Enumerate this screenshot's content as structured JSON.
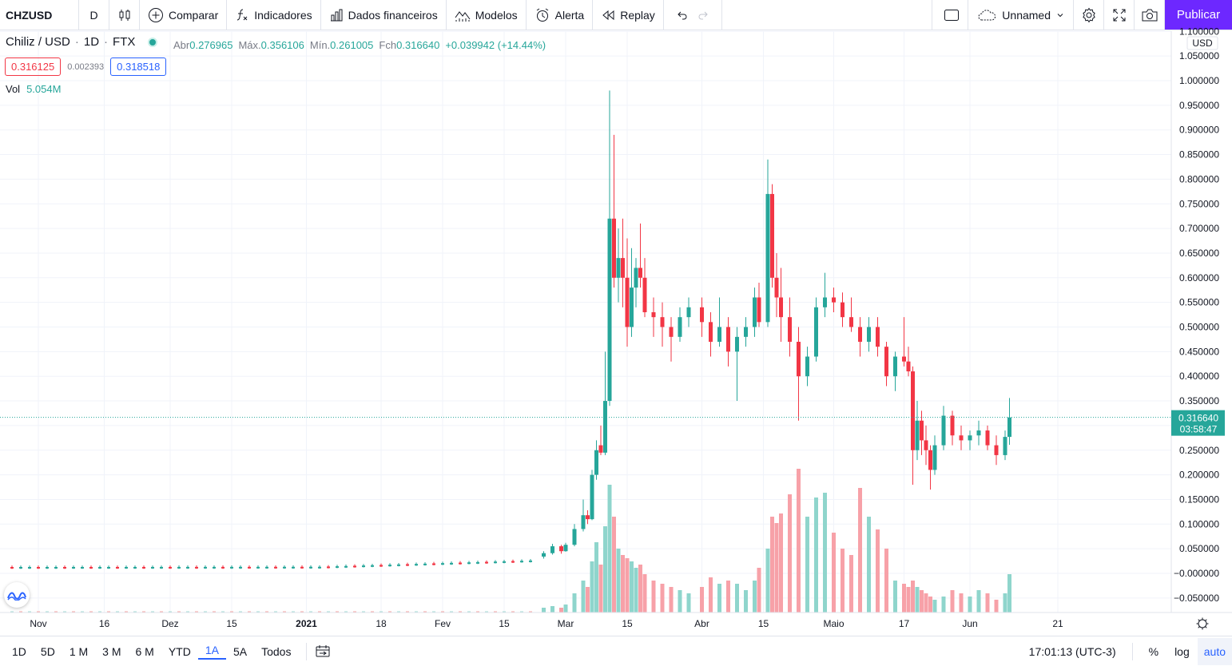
{
  "toolbar": {
    "symbol": "CHZUSD",
    "interval": "D",
    "compare_label": "Comparar",
    "indicators_label": "Indicadores",
    "financials_label": "Dados financeiros",
    "templates_label": "Modelos",
    "alert_label": "Alerta",
    "replay_label": "Replay",
    "layout_name": "Unnamed",
    "publish_label": "Publicar",
    "icons": [
      "candles-icon",
      "plus-circle-icon",
      "fx-icon",
      "bar-chart-icon",
      "templates-icon",
      "alarm-icon",
      "replay-icon",
      "undo-icon",
      "redo-icon",
      "layout-icon",
      "cloud-icon",
      "chevron-down-icon",
      "gear-icon",
      "fullscreen-icon",
      "camera-icon"
    ]
  },
  "legend": {
    "title": "Chiliz / USD",
    "interval": "1D",
    "exchange": "FTX",
    "open_label": "Abr",
    "open": "0.276965",
    "high_label": "Máx.",
    "high": "0.356106",
    "low_label": "Mín.",
    "low": "0.261005",
    "close_label": "Fch",
    "close": "0.316640",
    "change": "+0.039942 (+14.44%)",
    "bid": "0.316125",
    "spread": "0.002393",
    "ask": "0.318518",
    "vol_label": "Vol",
    "vol": "5.054M"
  },
  "bottombar": {
    "ranges": [
      "1D",
      "5D",
      "1 M",
      "3 M",
      "6 M",
      "YTD",
      "1A",
      "5A",
      "Todos"
    ],
    "active_range": "1A",
    "clock": "17:01:13 (UTC-3)",
    "percent_label": "%",
    "log_label": "log",
    "auto_label": "auto"
  },
  "colors": {
    "up": "#26a69a",
    "down": "#f23645",
    "accent": "#6d28ff",
    "active": "#2962ff"
  },
  "chart_data": {
    "type": "candlestick",
    "currency": "USD",
    "ylim": [
      -0.07,
      1.1
    ],
    "y_ticks": [
      "1.100000",
      "1.050000",
      "1.000000",
      "0.950000",
      "0.900000",
      "0.850000",
      "0.800000",
      "0.750000",
      "0.700000",
      "0.650000",
      "0.600000",
      "0.550000",
      "0.500000",
      "0.450000",
      "0.400000",
      "0.350000",
      "0.300000",
      "0.250000",
      "0.200000",
      "0.150000",
      "0.100000",
      "0.050000",
      "−0.000000",
      "−0.050000"
    ],
    "x_ticks": [
      {
        "label": "Nov",
        "date": "2020-11-01"
      },
      {
        "label": "16",
        "date": "2020-11-16"
      },
      {
        "label": "Dez",
        "date": "2020-12-01"
      },
      {
        "label": "15",
        "date": "2020-12-15"
      },
      {
        "label": "2021",
        "date": "2021-01-01",
        "bold": true
      },
      {
        "label": "18",
        "date": "2021-01-18"
      },
      {
        "label": "Fev",
        "date": "2021-02-01"
      },
      {
        "label": "15",
        "date": "2021-02-15"
      },
      {
        "label": "Mar",
        "date": "2021-03-01"
      },
      {
        "label": "15",
        "date": "2021-03-15"
      },
      {
        "label": "Abr",
        "date": "2021-04-01"
      },
      {
        "label": "15",
        "date": "2021-04-15"
      },
      {
        "label": "Maio",
        "date": "2021-05-01"
      },
      {
        "label": "17",
        "date": "2021-05-17"
      },
      {
        "label": "Jun",
        "date": "2021-06-01"
      },
      {
        "label": "21",
        "date": "2021-06-21"
      }
    ],
    "last_price": "0.316640",
    "countdown": "03:58:47",
    "last_value": 0.31664,
    "candles": [
      {
        "d": "2021-02-24",
        "o": 0.034,
        "h": 0.045,
        "l": 0.03,
        "c": 0.041,
        "v": 3
      },
      {
        "d": "2021-02-26",
        "o": 0.041,
        "h": 0.06,
        "l": 0.038,
        "c": 0.055,
        "v": 4
      },
      {
        "d": "2021-02-28",
        "o": 0.055,
        "h": 0.058,
        "l": 0.04,
        "c": 0.045,
        "v": 3
      },
      {
        "d": "2021-03-01",
        "o": 0.045,
        "h": 0.062,
        "l": 0.044,
        "c": 0.058,
        "v": 5
      },
      {
        "d": "2021-03-03",
        "o": 0.058,
        "h": 0.1,
        "l": 0.055,
        "c": 0.09,
        "v": 12
      },
      {
        "d": "2021-03-05",
        "o": 0.09,
        "h": 0.15,
        "l": 0.085,
        "c": 0.118,
        "v": 20
      },
      {
        "d": "2021-03-06",
        "o": 0.118,
        "h": 0.128,
        "l": 0.1,
        "c": 0.11,
        "v": 16
      },
      {
        "d": "2021-03-07",
        "o": 0.11,
        "h": 0.21,
        "l": 0.108,
        "c": 0.2,
        "v": 32
      },
      {
        "d": "2021-03-08",
        "o": 0.2,
        "h": 0.27,
        "l": 0.19,
        "c": 0.25,
        "v": 44
      },
      {
        "d": "2021-03-09",
        "o": 0.26,
        "h": 0.3,
        "l": 0.24,
        "c": 0.245,
        "v": 30
      },
      {
        "d": "2021-03-10",
        "o": 0.245,
        "h": 0.45,
        "l": 0.24,
        "c": 0.35,
        "v": 54
      },
      {
        "d": "2021-03-11",
        "o": 0.35,
        "h": 0.98,
        "l": 0.34,
        "c": 0.72,
        "v": 80
      },
      {
        "d": "2021-03-12",
        "o": 0.72,
        "h": 0.89,
        "l": 0.58,
        "c": 0.6,
        "v": 60
      },
      {
        "d": "2021-03-13",
        "o": 0.6,
        "h": 0.7,
        "l": 0.55,
        "c": 0.64,
        "v": 40
      },
      {
        "d": "2021-03-14",
        "o": 0.64,
        "h": 0.72,
        "l": 0.54,
        "c": 0.6,
        "v": 36
      },
      {
        "d": "2021-03-15",
        "o": 0.6,
        "h": 0.68,
        "l": 0.46,
        "c": 0.5,
        "v": 34
      },
      {
        "d": "2021-03-16",
        "o": 0.5,
        "h": 0.66,
        "l": 0.48,
        "c": 0.58,
        "v": 32
      },
      {
        "d": "2021-03-17",
        "o": 0.58,
        "h": 0.64,
        "l": 0.54,
        "c": 0.62,
        "v": 28
      },
      {
        "d": "2021-03-18",
        "o": 0.62,
        "h": 0.71,
        "l": 0.58,
        "c": 0.6,
        "v": 30
      },
      {
        "d": "2021-03-19",
        "o": 0.6,
        "h": 0.64,
        "l": 0.52,
        "c": 0.53,
        "v": 24
      },
      {
        "d": "2021-03-21",
        "o": 0.53,
        "h": 0.56,
        "l": 0.48,
        "c": 0.52,
        "v": 20
      },
      {
        "d": "2021-03-23",
        "o": 0.52,
        "h": 0.55,
        "l": 0.46,
        "c": 0.5,
        "v": 18
      },
      {
        "d": "2021-03-25",
        "o": 0.5,
        "h": 0.52,
        "l": 0.43,
        "c": 0.48,
        "v": 16
      },
      {
        "d": "2021-03-27",
        "o": 0.48,
        "h": 0.54,
        "l": 0.47,
        "c": 0.52,
        "v": 14
      },
      {
        "d": "2021-03-29",
        "o": 0.52,
        "h": 0.56,
        "l": 0.5,
        "c": 0.54,
        "v": 12
      },
      {
        "d": "2021-04-01",
        "o": 0.54,
        "h": 0.56,
        "l": 0.48,
        "c": 0.51,
        "v": 16
      },
      {
        "d": "2021-04-03",
        "o": 0.51,
        "h": 0.53,
        "l": 0.44,
        "c": 0.47,
        "v": 22
      },
      {
        "d": "2021-04-05",
        "o": 0.47,
        "h": 0.56,
        "l": 0.46,
        "c": 0.5,
        "v": 18
      },
      {
        "d": "2021-04-07",
        "o": 0.5,
        "h": 0.52,
        "l": 0.42,
        "c": 0.45,
        "v": 20
      },
      {
        "d": "2021-04-09",
        "o": 0.45,
        "h": 0.5,
        "l": 0.35,
        "c": 0.48,
        "v": 18
      },
      {
        "d": "2021-04-11",
        "o": 0.48,
        "h": 0.52,
        "l": 0.46,
        "c": 0.5,
        "v": 14
      },
      {
        "d": "2021-04-13",
        "o": 0.5,
        "h": 0.58,
        "l": 0.48,
        "c": 0.56,
        "v": 20
      },
      {
        "d": "2021-04-14",
        "o": 0.56,
        "h": 0.59,
        "l": 0.5,
        "c": 0.51,
        "v": 28
      },
      {
        "d": "2021-04-16",
        "o": 0.51,
        "h": 0.84,
        "l": 0.5,
        "c": 0.77,
        "v": 40
      },
      {
        "d": "2021-04-17",
        "o": 0.77,
        "h": 0.79,
        "l": 0.58,
        "c": 0.6,
        "v": 60
      },
      {
        "d": "2021-04-18",
        "o": 0.6,
        "h": 0.65,
        "l": 0.52,
        "c": 0.56,
        "v": 56
      },
      {
        "d": "2021-04-19",
        "o": 0.56,
        "h": 0.62,
        "l": 0.47,
        "c": 0.52,
        "v": 62
      },
      {
        "d": "2021-04-21",
        "o": 0.52,
        "h": 0.56,
        "l": 0.44,
        "c": 0.47,
        "v": 74
      },
      {
        "d": "2021-04-23",
        "o": 0.47,
        "h": 0.5,
        "l": 0.31,
        "c": 0.4,
        "v": 90
      },
      {
        "d": "2021-04-25",
        "o": 0.4,
        "h": 0.46,
        "l": 0.38,
        "c": 0.44,
        "v": 60
      },
      {
        "d": "2021-04-27",
        "o": 0.44,
        "h": 0.56,
        "l": 0.43,
        "c": 0.54,
        "v": 72
      },
      {
        "d": "2021-04-29",
        "o": 0.54,
        "h": 0.61,
        "l": 0.52,
        "c": 0.56,
        "v": 75
      },
      {
        "d": "2021-05-01",
        "o": 0.56,
        "h": 0.58,
        "l": 0.53,
        "c": 0.55,
        "v": 50
      },
      {
        "d": "2021-05-03",
        "o": 0.55,
        "h": 0.57,
        "l": 0.5,
        "c": 0.52,
        "v": 40
      },
      {
        "d": "2021-05-05",
        "o": 0.52,
        "h": 0.56,
        "l": 0.49,
        "c": 0.5,
        "v": 36
      },
      {
        "d": "2021-05-07",
        "o": 0.5,
        "h": 0.52,
        "l": 0.44,
        "c": 0.47,
        "v": 78
      },
      {
        "d": "2021-05-09",
        "o": 0.47,
        "h": 0.52,
        "l": 0.45,
        "c": 0.5,
        "v": 60
      },
      {
        "d": "2021-05-11",
        "o": 0.5,
        "h": 0.52,
        "l": 0.44,
        "c": 0.46,
        "v": 52
      },
      {
        "d": "2021-05-13",
        "o": 0.46,
        "h": 0.47,
        "l": 0.38,
        "c": 0.4,
        "v": 40
      },
      {
        "d": "2021-05-15",
        "o": 0.4,
        "h": 0.45,
        "l": 0.37,
        "c": 0.44,
        "v": 20
      },
      {
        "d": "2021-05-17",
        "o": 0.44,
        "h": 0.52,
        "l": 0.42,
        "c": 0.43,
        "v": 18
      },
      {
        "d": "2021-05-18",
        "o": 0.43,
        "h": 0.46,
        "l": 0.4,
        "c": 0.41,
        "v": 16
      },
      {
        "d": "2021-05-19",
        "o": 0.41,
        "h": 0.42,
        "l": 0.18,
        "c": 0.25,
        "v": 20
      },
      {
        "d": "2021-05-20",
        "o": 0.25,
        "h": 0.35,
        "l": 0.23,
        "c": 0.31,
        "v": 16
      },
      {
        "d": "2021-05-21",
        "o": 0.31,
        "h": 0.33,
        "l": 0.24,
        "c": 0.27,
        "v": 14
      },
      {
        "d": "2021-05-22",
        "o": 0.27,
        "h": 0.3,
        "l": 0.22,
        "c": 0.25,
        "v": 12
      },
      {
        "d": "2021-05-23",
        "o": 0.25,
        "h": 0.26,
        "l": 0.17,
        "c": 0.21,
        "v": 10
      },
      {
        "d": "2021-05-24",
        "o": 0.21,
        "h": 0.28,
        "l": 0.2,
        "c": 0.26,
        "v": 8
      },
      {
        "d": "2021-05-26",
        "o": 0.26,
        "h": 0.34,
        "l": 0.25,
        "c": 0.32,
        "v": 10
      },
      {
        "d": "2021-05-28",
        "o": 0.32,
        "h": 0.33,
        "l": 0.26,
        "c": 0.28,
        "v": 14
      },
      {
        "d": "2021-05-30",
        "o": 0.28,
        "h": 0.3,
        "l": 0.25,
        "c": 0.27,
        "v": 12
      },
      {
        "d": "2021-06-01",
        "o": 0.27,
        "h": 0.29,
        "l": 0.25,
        "c": 0.28,
        "v": 10
      },
      {
        "d": "2021-06-03",
        "o": 0.28,
        "h": 0.31,
        "l": 0.26,
        "c": 0.29,
        "v": 14
      },
      {
        "d": "2021-06-05",
        "o": 0.29,
        "h": 0.3,
        "l": 0.25,
        "c": 0.26,
        "v": 12
      },
      {
        "d": "2021-06-07",
        "o": 0.26,
        "h": 0.28,
        "l": 0.22,
        "c": 0.24,
        "v": 8
      },
      {
        "d": "2021-06-09",
        "o": 0.24,
        "h": 0.29,
        "l": 0.23,
        "c": 0.277,
        "v": 12
      },
      {
        "d": "2021-06-10",
        "o": 0.277,
        "h": 0.356,
        "l": 0.261,
        "c": 0.3166,
        "v": 24
      }
    ]
  }
}
